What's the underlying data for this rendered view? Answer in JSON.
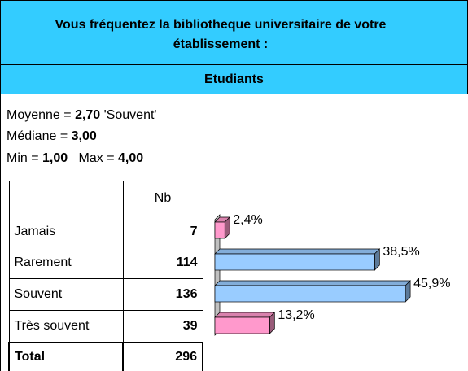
{
  "header": {
    "title": "Vous fréquentez la bibliotheque universitaire de votre établissement :",
    "subtitle": "Etudiants"
  },
  "stats": {
    "mean_label": "Moyenne =",
    "mean": "2,70",
    "mean_text": "'Souvent'",
    "median_label": "Médiane =",
    "median": "3,00",
    "min_label": "Min =",
    "min": "1,00",
    "max_label": "Max =",
    "max": "4,00"
  },
  "table": {
    "header": "Nb",
    "rows": [
      [
        "Jamais",
        7
      ],
      [
        "Rarement",
        114
      ],
      [
        "Souvent",
        136
      ],
      [
        "Très souvent",
        39
      ]
    ],
    "total": [
      "Total",
      296
    ]
  },
  "chart_data": {
    "type": "bar",
    "orientation": "horizontal",
    "values": [
      2.4,
      38.5,
      45.9,
      13.2
    ],
    "value_labels": [
      "2,4%",
      "38,5%",
      "45,9%",
      "13,2%"
    ],
    "colors": [
      "#ff99cc",
      "#99ccff",
      "#99ccff",
      "#ff99cc"
    ]
  }
}
